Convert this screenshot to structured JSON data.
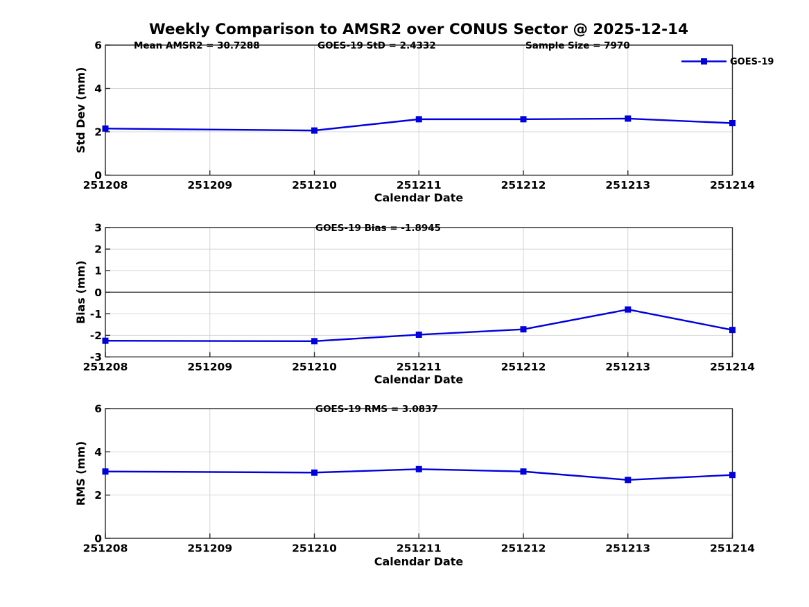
{
  "title": "Weekly Comparison to AMSR2 over CONUS Sector @ 2025-12-14",
  "legend": {
    "label": "GOES-19"
  },
  "colors": {
    "line": "#0000dd",
    "grid": "#d4d4d4",
    "axis": "#262626",
    "zero_line": "#4d4d4d",
    "text": "#000000",
    "background": "#ffffff"
  },
  "chart_data": {
    "type": "line",
    "series_name": "GOES-19",
    "xlabel": "Calendar Date",
    "x_categories": [
      "251208",
      "251209",
      "251210",
      "251211",
      "251212",
      "251213",
      "251214"
    ],
    "legend_position": "northeast-outside-top",
    "grid": true,
    "marker": "square",
    "subplots": [
      {
        "name": "std_dev",
        "ylabel": "Std Dev (mm)",
        "ylim": [
          0,
          6
        ],
        "yticks": [
          0,
          2,
          4,
          6
        ],
        "annotations": [
          "Mean AMSR2 = 30.7288",
          "GOES-19 StD = 2.4332",
          "Sample Size = 7970"
        ],
        "x": [
          "251208",
          "251210",
          "251211",
          "251212",
          "251213",
          "251214"
        ],
        "values": [
          2.15,
          2.06,
          2.58,
          2.58,
          2.61,
          2.4
        ]
      },
      {
        "name": "bias",
        "ylabel": "Bias (mm)",
        "ylim": [
          -3,
          3
        ],
        "yticks": [
          -3,
          -2,
          -1,
          0,
          1,
          2,
          3
        ],
        "zero_line": true,
        "annotations": [
          "GOES-19 Bias  = -1.8945"
        ],
        "x": [
          "251208",
          "251210",
          "251211",
          "251212",
          "251213",
          "251214"
        ],
        "values": [
          -2.25,
          -2.27,
          -1.97,
          -1.72,
          -0.8,
          -1.75
        ]
      },
      {
        "name": "rms",
        "ylabel": "RMS (mm)",
        "ylim": [
          0,
          6
        ],
        "yticks": [
          0,
          2,
          4,
          6
        ],
        "annotations": [
          "GOES-19 RMS = 3.0837"
        ],
        "x": [
          "251208",
          "251210",
          "251211",
          "251212",
          "251213",
          "251214"
        ],
        "values": [
          3.09,
          3.04,
          3.2,
          3.09,
          2.7,
          2.93
        ]
      }
    ]
  }
}
